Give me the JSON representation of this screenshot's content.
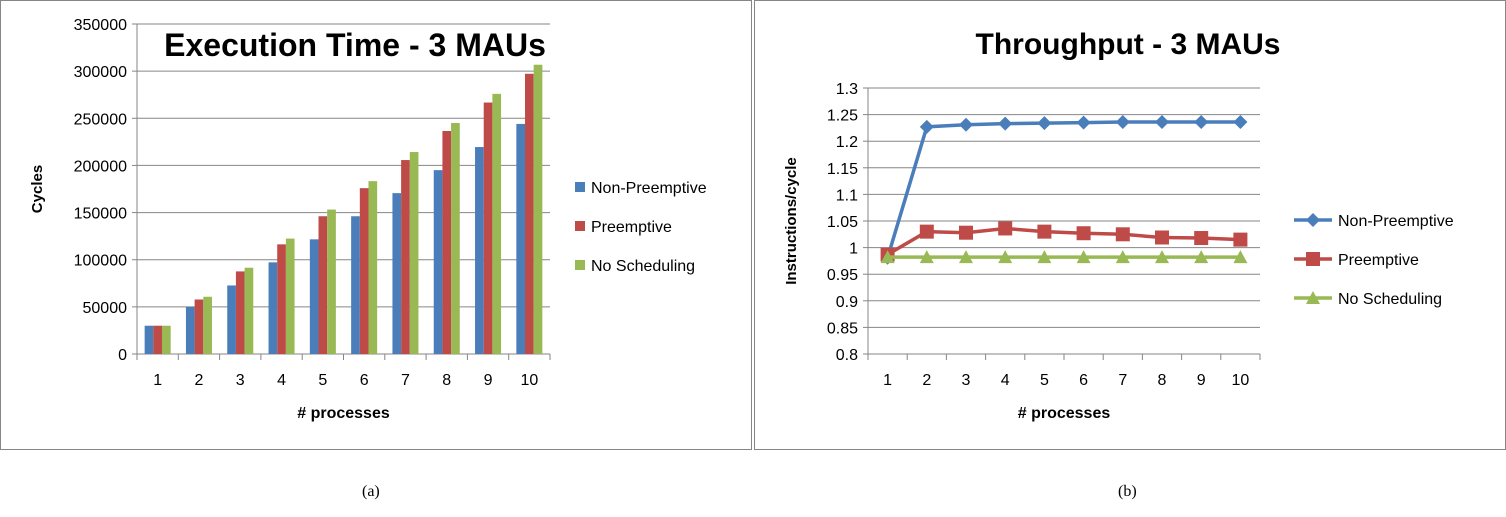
{
  "chart_data": [
    {
      "type": "bar",
      "title": "Execution Time - 3 MAUs",
      "xlabel": "# processes",
      "ylabel": "Cycles",
      "categories": [
        "1",
        "2",
        "3",
        "4",
        "5",
        "6",
        "7",
        "8",
        "9",
        "10"
      ],
      "ylim": [
        0,
        350000
      ],
      "yticks": [
        "0",
        "50000",
        "100000",
        "150000",
        "200000",
        "250000",
        "300000",
        "350000"
      ],
      "grid": true,
      "legend": "right",
      "series": [
        {
          "name": "Non-Preemptive",
          "color": "#4a7ebb",
          "values": [
            30000,
            50000,
            72700,
            97200,
            121600,
            146100,
            170600,
            195000,
            219500,
            244000
          ]
        },
        {
          "name": "Preemptive",
          "color": "#be4b48",
          "values": [
            30000,
            57800,
            87600,
            116300,
            146100,
            175900,
            205700,
            236500,
            266700,
            297200
          ]
        },
        {
          "name": "No Scheduling",
          "color": "#98b954",
          "values": [
            30000,
            60700,
            91500,
            122400,
            153200,
            183300,
            214200,
            245000,
            275900,
            306800
          ]
        }
      ]
    },
    {
      "type": "line",
      "title": "Throughput - 3 MAUs",
      "xlabel": "# processes",
      "ylabel": "Instructions/cycle",
      "categories": [
        "1",
        "2",
        "3",
        "4",
        "5",
        "6",
        "7",
        "8",
        "9",
        "10"
      ],
      "ylim": [
        0.8,
        1.3
      ],
      "yticks": [
        "0.8",
        "0.85",
        "0.9",
        "0.95",
        "1",
        "1.05",
        "1.1",
        "1.15",
        "1.2",
        "1.25",
        "1.3"
      ],
      "grid": true,
      "legend": "right",
      "series": [
        {
          "name": "Non-Preemptive",
          "color": "#4a7ebb",
          "marker": "diamond",
          "values": [
            0.981,
            1.227,
            1.231,
            1.233,
            1.234,
            1.235,
            1.236,
            1.236,
            1.236,
            1.236
          ]
        },
        {
          "name": "Preemptive",
          "color": "#be4b48",
          "marker": "square",
          "values": [
            0.987,
            1.03,
            1.028,
            1.036,
            1.03,
            1.027,
            1.025,
            1.019,
            1.018,
            1.015
          ]
        },
        {
          "name": "No Scheduling",
          "color": "#98b954",
          "marker": "triangle",
          "values": [
            0.982,
            0.982,
            0.982,
            0.982,
            0.982,
            0.982,
            0.982,
            0.982,
            0.982,
            0.982
          ]
        }
      ]
    }
  ],
  "captions": [
    "(a)",
    "(b)"
  ]
}
